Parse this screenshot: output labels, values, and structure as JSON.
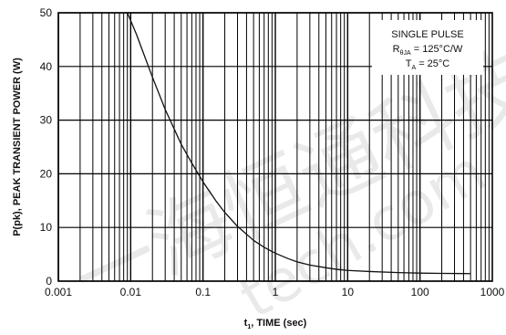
{
  "chart_data": {
    "type": "line",
    "title": "",
    "xlabel": {
      "main": "t",
      "sub": "1",
      "rest": ", TIME (sec)"
    },
    "ylabel": "P(pk), PEAK TRANSIENT POWER (W)",
    "x_scale": "log",
    "xlim": [
      0.001,
      1000
    ],
    "ylim": [
      0,
      50
    ],
    "grid": true,
    "x_ticks": [
      {
        "value": 0.001,
        "label": "0.001"
      },
      {
        "value": 0.01,
        "label": "0.01"
      },
      {
        "value": 0.1,
        "label": "0.1"
      },
      {
        "value": 1,
        "label": "1"
      },
      {
        "value": 10,
        "label": "10"
      },
      {
        "value": 100,
        "label": "100"
      },
      {
        "value": 1000,
        "label": "1000"
      }
    ],
    "y_ticks": [
      {
        "value": 0,
        "label": "0"
      },
      {
        "value": 10,
        "label": "10"
      },
      {
        "value": 20,
        "label": "20"
      },
      {
        "value": 30,
        "label": "30"
      },
      {
        "value": 40,
        "label": "40"
      },
      {
        "value": 50,
        "label": "50"
      }
    ],
    "annotation": {
      "line1": "SINGLE PULSE",
      "line2_main": "R",
      "line2_sub": "θJA",
      "line2_rest": " = 125°C/W",
      "line3_main": "T",
      "line3_sub": "A",
      "line3_rest": " = 25°C"
    },
    "series": [
      {
        "x": [
          0.009,
          0.012,
          0.015,
          0.02,
          0.03,
          0.05,
          0.07,
          0.1,
          0.15,
          0.2,
          0.3,
          0.5,
          0.7,
          1,
          1.5,
          2,
          3,
          5,
          7,
          10,
          20,
          50,
          100,
          200,
          500
        ],
        "y": [
          50,
          46,
          42.5,
          38,
          32,
          25.5,
          22,
          18.5,
          15,
          12.8,
          10.2,
          7.6,
          6.3,
          5.2,
          4.2,
          3.6,
          3.0,
          2.5,
          2.2,
          2.0,
          1.8,
          1.6,
          1.5,
          1.45,
          1.4
        ]
      }
    ]
  }
}
